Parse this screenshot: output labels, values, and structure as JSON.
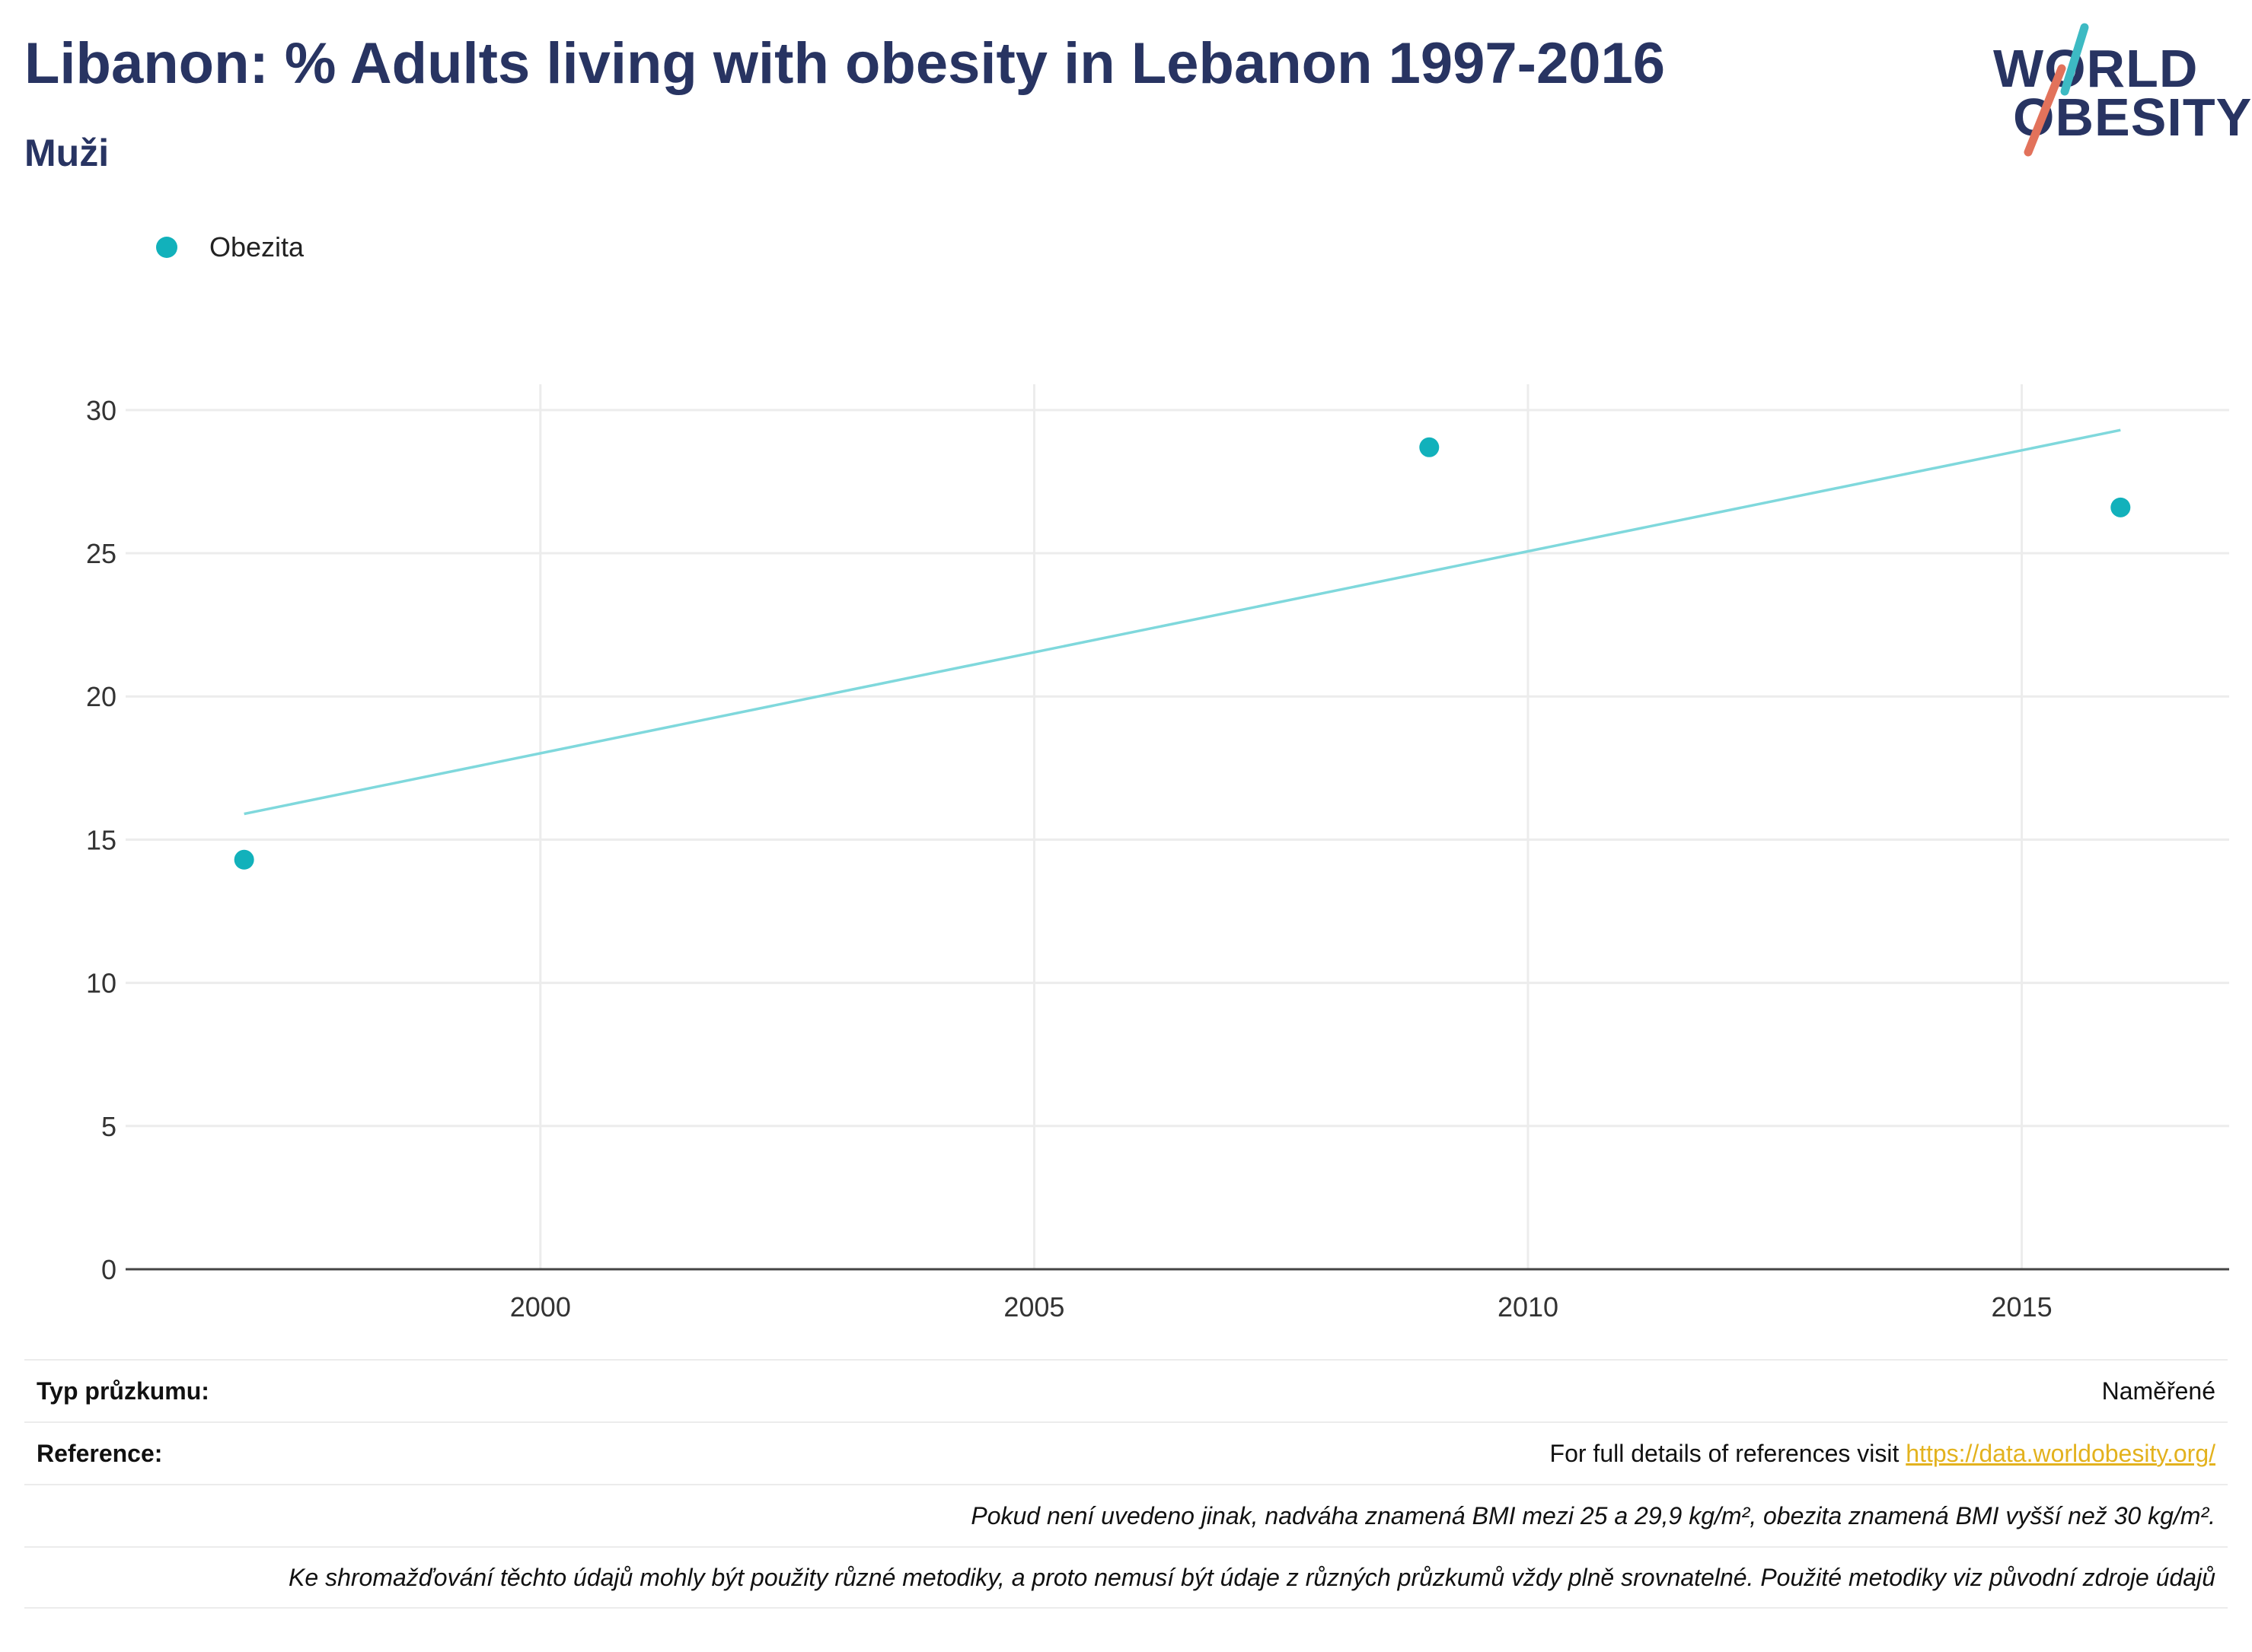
{
  "header": {
    "title": "Libanon: % Adults living with obesity in Lebanon 1997-2016",
    "subtitle": "Muži"
  },
  "logo": {
    "line1": "WORLD",
    "line2": "OBESITY",
    "colors": {
      "teal": "#3dbac3",
      "coral": "#e2725b"
    }
  },
  "legend": {
    "label": "Obezita",
    "color": "#12b1bb"
  },
  "chart_data": {
    "type": "scatter",
    "title": "",
    "xlabel": "",
    "ylabel": "",
    "xlim": [
      1995.8,
      2017.1
    ],
    "ylim": [
      0,
      30.9
    ],
    "x_ticks": [
      2000,
      2005,
      2010,
      2015
    ],
    "y_ticks": [
      0,
      5,
      10,
      15,
      20,
      25,
      30
    ],
    "grid": true,
    "legend_position": "top-left",
    "series": [
      {
        "name": "Obezita",
        "color": "#12b1bb",
        "points": [
          {
            "x": 1997,
            "y": 14.3
          },
          {
            "x": 2009,
            "y": 28.7
          },
          {
            "x": 2016,
            "y": 26.6
          }
        ]
      }
    ],
    "trendline": {
      "color": "#7fd8dc",
      "points": [
        {
          "x": 1997,
          "y": 15.9
        },
        {
          "x": 2016,
          "y": 29.3
        }
      ]
    }
  },
  "footer": {
    "survey_type_label": "Typ průzkumu:",
    "survey_type_value": "Naměřené",
    "reference_label": "Reference:",
    "reference_text": "For full details of references visit",
    "reference_link": "https://data.worldobesity.org/",
    "note1": "Pokud není uvedeno jinak, nadváha znamená BMI mezi 25 a 29,9 kg/m², obezita znamená BMI vyšší než 30 kg/m².",
    "note2": "Ke shromažďování těchto údajů mohly být použity různé metodiky, a proto nemusí být údaje z různých průzkumů vždy plně srovnatelné. Použité metodiky viz původní zdroje údajů"
  }
}
